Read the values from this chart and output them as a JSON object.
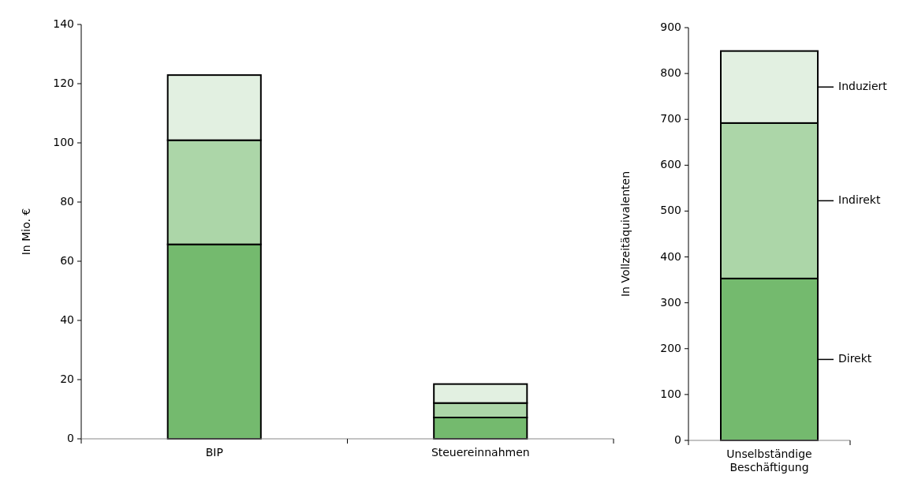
{
  "chart_data": [
    {
      "type": "bar",
      "stacked": true,
      "ylabel": "In Mio. €",
      "categories": [
        "BIP",
        "Steuereinnahmen"
      ],
      "ylim": [
        0,
        140
      ],
      "yticks": [
        0,
        20,
        40,
        60,
        80,
        100,
        120,
        140
      ],
      "grid": false,
      "series": [
        {
          "color": "#74ba6e",
          "values": [
            65.7,
            7.2
          ]
        },
        {
          "color": "#acd6a8",
          "values": [
            35.2,
            4.9
          ]
        },
        {
          "color": "#e2f0e1",
          "values": [
            22.0,
            6.4
          ]
        }
      ]
    },
    {
      "type": "bar",
      "stacked": true,
      "ylabel": "In Vollzeitäquivalenten",
      "categories": [
        "Unselbständige Beschäftigung"
      ],
      "ylim": [
        0,
        900
      ],
      "yticks": [
        0,
        100,
        200,
        300,
        400,
        500,
        600,
        700,
        800,
        900
      ],
      "grid": false,
      "legend": "right",
      "series": [
        {
          "name": "Direkt",
          "color": "#74ba6e",
          "values": [
            353
          ]
        },
        {
          "name": "Indirekt",
          "color": "#acd6a8",
          "values": [
            339
          ]
        },
        {
          "name": "Induziert",
          "color": "#e2f0e1",
          "values": [
            157
          ]
        }
      ]
    }
  ]
}
